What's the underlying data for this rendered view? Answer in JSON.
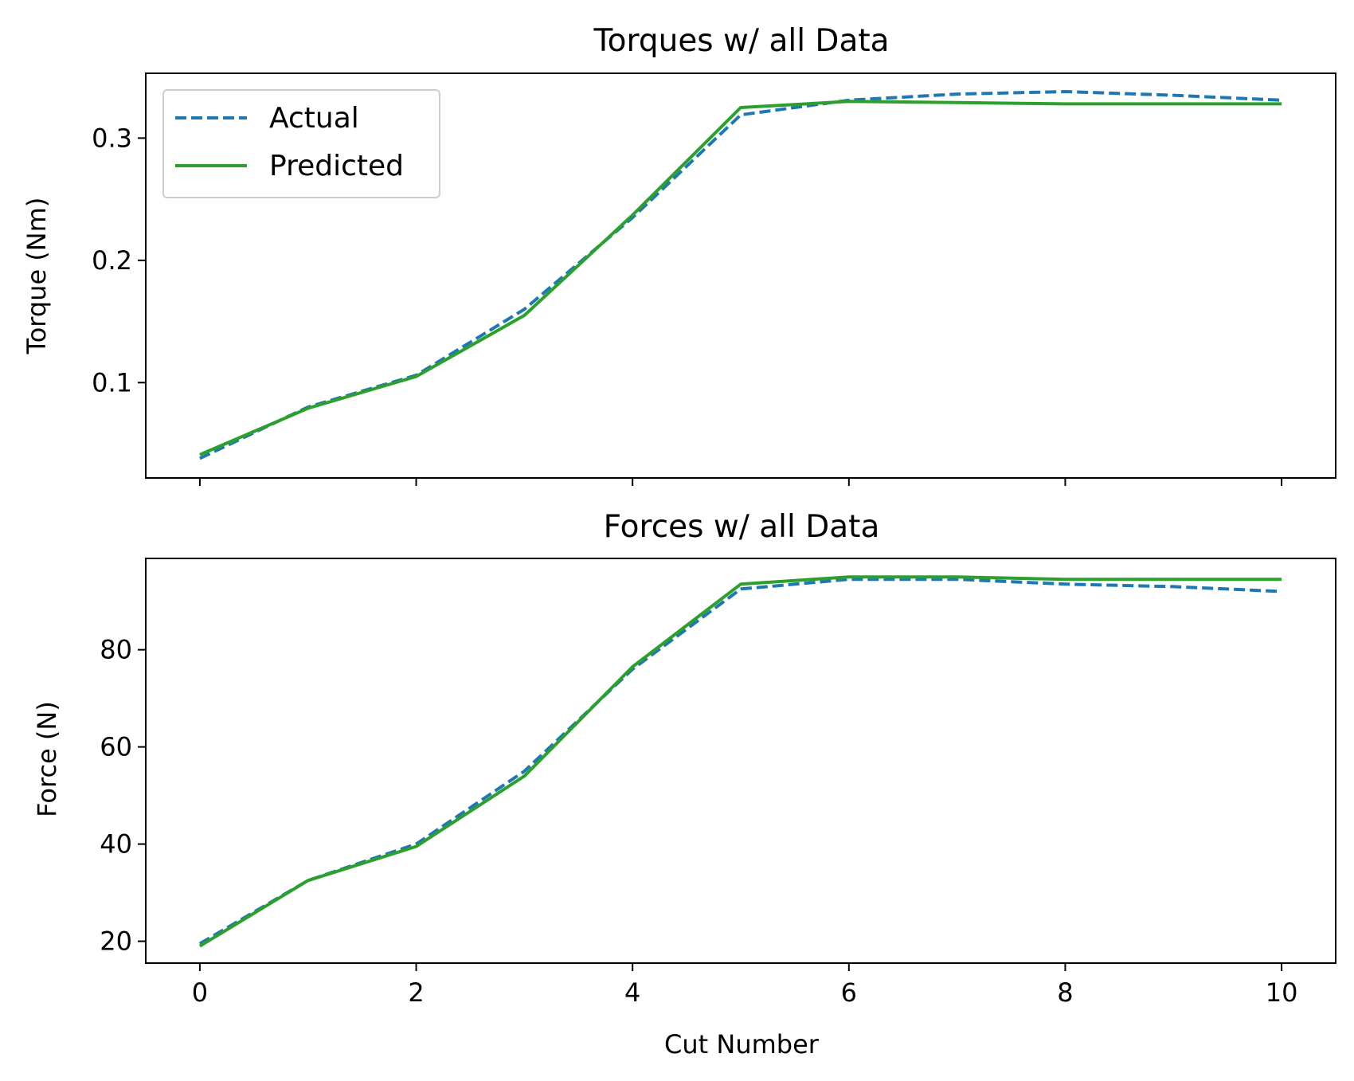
{
  "chart_data": [
    {
      "type": "line",
      "title": "Torques w/ all Data",
      "xlabel": "",
      "ylabel": "Torque (Nm)",
      "x": [
        0,
        1,
        2,
        3,
        4,
        5,
        6,
        7,
        8,
        9,
        10
      ],
      "xlim": [
        -0.5,
        10.5
      ],
      "ylim": [
        0.022,
        0.353
      ],
      "xticks": [
        0,
        2,
        4,
        6,
        8,
        10
      ],
      "xtick_labels_visible": false,
      "yticks": [
        0.1,
        0.2,
        0.3
      ],
      "ytick_labels": [
        "0.1",
        "0.2",
        "0.3"
      ],
      "grid": false,
      "legend_position": "upper-left",
      "series": [
        {
          "name": "Actual",
          "color": "#1f77b4",
          "style": "dashed",
          "values": [
            0.038,
            0.08,
            0.106,
            0.16,
            0.235,
            0.319,
            0.331,
            0.336,
            0.338,
            0.335,
            0.331
          ]
        },
        {
          "name": "Predicted",
          "color": "#2ca02c",
          "style": "solid",
          "values": [
            0.041,
            0.079,
            0.105,
            0.155,
            0.237,
            0.325,
            0.33,
            0.329,
            0.328,
            0.328,
            0.328
          ]
        }
      ]
    },
    {
      "type": "line",
      "title": "Forces w/ all Data",
      "xlabel": "Cut Number",
      "ylabel": "Force (N)",
      "x": [
        0,
        1,
        2,
        3,
        4,
        5,
        6,
        7,
        8,
        9,
        10
      ],
      "xlim": [
        -0.5,
        10.5
      ],
      "ylim": [
        15.5,
        98.8
      ],
      "xticks": [
        0,
        2,
        4,
        6,
        8,
        10
      ],
      "xtick_labels": [
        "0",
        "2",
        "4",
        "6",
        "8",
        "10"
      ],
      "xtick_labels_visible": true,
      "yticks": [
        20,
        40,
        60,
        80
      ],
      "ytick_labels": [
        "20",
        "40",
        "60",
        "80"
      ],
      "grid": false,
      "series": [
        {
          "name": "Actual",
          "color": "#1f77b4",
          "style": "dashed",
          "values": [
            19.5,
            32.5,
            40.0,
            55.0,
            76.0,
            92.5,
            94.5,
            94.5,
            93.5,
            93.0,
            92.0
          ]
        },
        {
          "name": "Predicted",
          "color": "#2ca02c",
          "style": "solid",
          "values": [
            19.0,
            32.5,
            39.5,
            54.0,
            76.5,
            93.5,
            95.0,
            95.0,
            94.5,
            94.5,
            94.5
          ]
        }
      ]
    }
  ]
}
